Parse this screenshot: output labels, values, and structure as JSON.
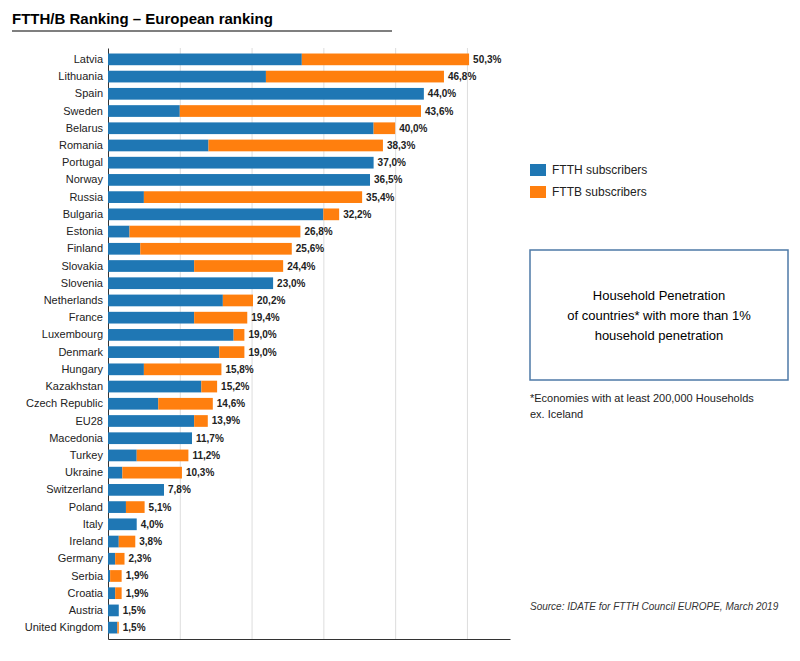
{
  "chart_data": {
    "type": "bar",
    "orientation": "horizontal",
    "stacked": true,
    "title": "FTTH/B Ranking – European ranking",
    "categories": [
      "Latvia",
      "Lithuania",
      "Spain",
      "Sweden",
      "Belarus",
      "Romania",
      "Portugal",
      "Norway",
      "Russia",
      "Bulgaria",
      "Estonia",
      "Finland",
      "Slovakia",
      "Slovenia",
      "Netherlands",
      "France",
      "Luxembourg",
      "Denmark",
      "Hungary",
      "Kazakhstan",
      "Czech Republic",
      "EU28",
      "Macedonia",
      "Turkey",
      "Ukraine",
      "Switzerland",
      "Poland",
      "Italy",
      "Ireland",
      "Germany",
      "Serbia",
      "Croatia",
      "Austria",
      "United Kingdom"
    ],
    "series": [
      {
        "name": "FTTH subscribers",
        "values": [
          27.0,
          22.0,
          44.0,
          10.0,
          37.0,
          14.0,
          37.0,
          36.5,
          5.0,
          30.0,
          3.0,
          4.5,
          12.0,
          23.0,
          16.0,
          12.0,
          17.5,
          15.5,
          5.0,
          13.0,
          7.0,
          12.0,
          11.7,
          4.0,
          2.0,
          7.8,
          2.5,
          4.0,
          1.5,
          1.0,
          0.3,
          1.0,
          1.5,
          1.3
        ]
      },
      {
        "name": "FTTB subscribers",
        "values": [
          23.3,
          24.8,
          0.0,
          33.6,
          3.0,
          24.3,
          0.0,
          0.0,
          30.4,
          2.2,
          23.8,
          21.1,
          12.4,
          0.0,
          4.2,
          7.4,
          1.5,
          3.5,
          10.8,
          2.2,
          7.6,
          1.9,
          0.0,
          7.2,
          8.3,
          0.0,
          2.6,
          0.0,
          2.3,
          1.3,
          1.6,
          0.9,
          0.0,
          0.2
        ]
      }
    ],
    "totals": {
      "values": [
        50.3,
        46.8,
        44.0,
        43.6,
        40.0,
        38.3,
        37.0,
        36.5,
        35.4,
        32.2,
        26.8,
        25.6,
        24.4,
        23.0,
        20.2,
        19.4,
        19.0,
        19.0,
        15.8,
        15.2,
        14.6,
        13.9,
        11.7,
        11.2,
        10.3,
        7.8,
        5.1,
        4.0,
        3.8,
        2.3,
        1.9,
        1.9,
        1.5,
        1.5
      ],
      "value_labels": [
        "50,3%",
        "46,8%",
        "44,0%",
        "43,6%",
        "40,0%",
        "38,3%",
        "37,0%",
        "36,5%",
        "35,4%",
        "32,2%",
        "26,8%",
        "25,6%",
        "24,4%",
        "23,0%",
        "20,2%",
        "19,4%",
        "19,0%",
        "19,0%",
        "15,8%",
        "15,2%",
        "14,6%",
        "13,9%",
        "11,7%",
        "11,2%",
        "10,3%",
        "7,8%",
        "5,1%",
        "4,0%",
        "3,8%",
        "2,3%",
        "1,9%",
        "1,9%",
        "1,5%",
        "1,5%"
      ]
    },
    "xlim": [
      0,
      56
    ],
    "xticks": [
      10,
      20,
      30,
      40,
      50
    ],
    "grid": true,
    "tick_labels": "y",
    "legend": "right",
    "annotation": "Household Penetration\nof countries* with more than 1%\nhousehold penetration",
    "footnote": "*Economies with at least 200,000 Households\nex. Iceland",
    "source": "Source: IDATE for FTTH Council EUROPE, March 2019"
  }
}
